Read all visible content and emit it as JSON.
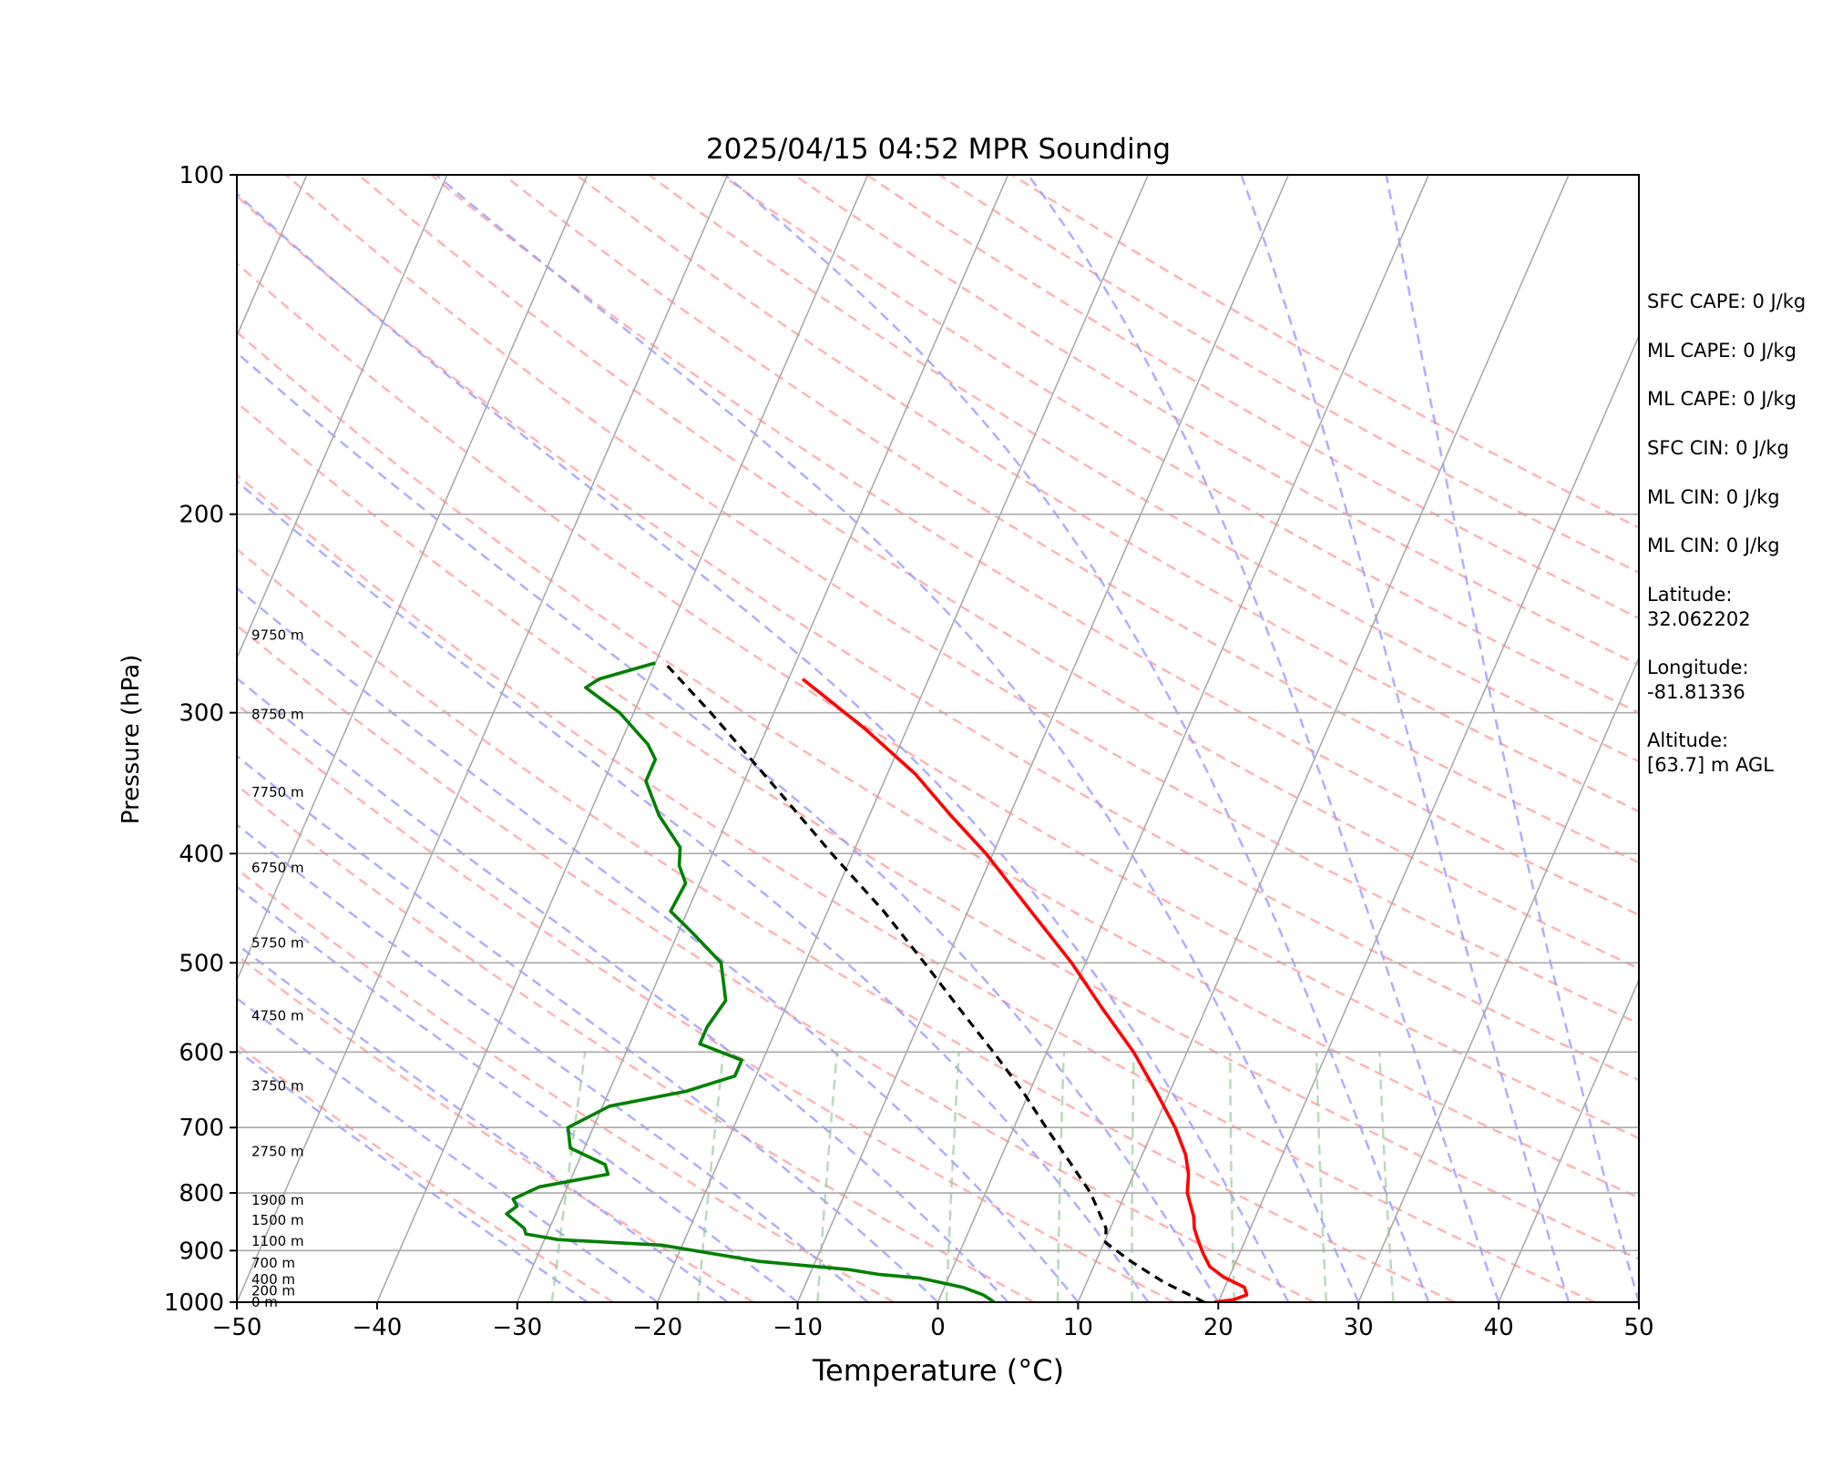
{
  "chart_data": {
    "type": "line",
    "title": "2025/04/15 04:52 MPR Sounding",
    "xlabel": "Temperature (°C)",
    "ylabel": "Pressure (hPa)",
    "xlim": [
      -50,
      50
    ],
    "ylim": [
      1000,
      100
    ],
    "y_scale": "log",
    "x_ticks": [
      -50,
      -40,
      -30,
      -20,
      -10,
      0,
      10,
      20,
      30,
      40,
      50
    ],
    "x_tick_labels": [
      "−50",
      "−40",
      "−30",
      "−20",
      "−10",
      "0",
      "10",
      "20",
      "30",
      "40",
      "50"
    ],
    "y_ticks": [
      1000,
      900,
      800,
      700,
      600,
      500,
      400,
      300,
      200,
      100
    ],
    "y_tick_labels": [
      "1000",
      "900",
      "800",
      "700",
      "600",
      "500",
      "400",
      "300",
      "200",
      "100"
    ],
    "skew": "skew-T log-P",
    "grid": true,
    "height_labels": [
      {
        "p": 1000,
        "text": "0 m"
      },
      {
        "p": 977,
        "text": "200 m"
      },
      {
        "p": 955,
        "text": "400 m"
      },
      {
        "p": 923,
        "text": "700 m"
      },
      {
        "p": 883,
        "text": "1100 m"
      },
      {
        "p": 846,
        "text": "1500 m"
      },
      {
        "p": 812,
        "text": "1900 m"
      },
      {
        "p": 735,
        "text": "2750 m"
      },
      {
        "p": 643,
        "text": "3750 m"
      },
      {
        "p": 557,
        "text": "4750 m"
      },
      {
        "p": 480,
        "text": "5750 m"
      },
      {
        "p": 412,
        "text": "6750 m"
      },
      {
        "p": 353,
        "text": "7750 m"
      },
      {
        "p": 301,
        "text": "8750 m"
      },
      {
        "p": 256,
        "text": "9750 m"
      }
    ],
    "series": [
      {
        "key": "temperature",
        "color": "#ff0000",
        "points": [
          [
            1000,
            19.7
          ],
          [
            995,
            21.0
          ],
          [
            985,
            21.8
          ],
          [
            970,
            21.4
          ],
          [
            950,
            19.6
          ],
          [
            930,
            18.3
          ],
          [
            905,
            17.4
          ],
          [
            880,
            16.6
          ],
          [
            860,
            16.0
          ],
          [
            840,
            15.6
          ],
          [
            800,
            14.4
          ],
          [
            770,
            13.9
          ],
          [
            740,
            13.1
          ],
          [
            700,
            11.5
          ],
          [
            650,
            9.0
          ],
          [
            600,
            6.2
          ],
          [
            550,
            2.7
          ],
          [
            500,
            -1.0
          ],
          [
            450,
            -5.5
          ],
          [
            400,
            -10.5
          ],
          [
            370,
            -14.2
          ],
          [
            340,
            -18.0
          ],
          [
            310,
            -23.0
          ],
          [
            280,
            -29.0
          ]
        ]
      },
      {
        "key": "dewpoint",
        "color": "#008000",
        "points": [
          [
            1000,
            4.0
          ],
          [
            995,
            3.7
          ],
          [
            985,
            3.0
          ],
          [
            970,
            1.3
          ],
          [
            960,
            -0.5
          ],
          [
            952,
            -2.0
          ],
          [
            945,
            -5.0
          ],
          [
            935,
            -7.5
          ],
          [
            920,
            -14.0
          ],
          [
            890,
            -21.5
          ],
          [
            880,
            -29.0
          ],
          [
            870,
            -31.5
          ],
          [
            860,
            -31.8
          ],
          [
            835,
            -33.5
          ],
          [
            822,
            -33.0
          ],
          [
            810,
            -33.5
          ],
          [
            790,
            -32.0
          ],
          [
            770,
            -27.5
          ],
          [
            755,
            -28.0
          ],
          [
            730,
            -31.0
          ],
          [
            700,
            -31.8
          ],
          [
            670,
            -29.5
          ],
          [
            650,
            -24.5
          ],
          [
            630,
            -21.5
          ],
          [
            610,
            -21.5
          ],
          [
            590,
            -25.0
          ],
          [
            570,
            -25.0
          ],
          [
            540,
            -24.5
          ],
          [
            500,
            -26.0
          ],
          [
            470,
            -29.0
          ],
          [
            450,
            -31.2
          ],
          [
            425,
            -31.0
          ],
          [
            410,
            -32.0
          ],
          [
            395,
            -32.5
          ],
          [
            370,
            -35.0
          ],
          [
            345,
            -37.0
          ],
          [
            330,
            -37.0
          ],
          [
            320,
            -38.0
          ],
          [
            300,
            -41.0
          ],
          [
            285,
            -44.2
          ],
          [
            280,
            -43.5
          ],
          [
            271,
            -40.0
          ]
        ]
      },
      {
        "key": "parcel",
        "color": "#000000",
        "style": "dashed",
        "points": [
          [
            1000,
            19.0
          ],
          [
            960,
            15.5
          ],
          [
            920,
            12.5
          ],
          [
            885,
            10.1
          ],
          [
            860,
            9.7
          ],
          [
            800,
            7.5
          ],
          [
            750,
            5.0
          ],
          [
            700,
            2.3
          ],
          [
            650,
            -0.5
          ],
          [
            600,
            -3.8
          ],
          [
            550,
            -7.5
          ],
          [
            500,
            -11.5
          ],
          [
            450,
            -16.0
          ],
          [
            400,
            -21.5
          ],
          [
            350,
            -27.5
          ],
          [
            300,
            -34.5
          ],
          [
            270,
            -39.5
          ]
        ]
      }
    ],
    "background_lines": {
      "isotherm_color": "#aaaaaa",
      "dry_adiabat_color": "#ff9a9a",
      "moist_adiabat_color": "#9a9aff",
      "mixing_ratio_color": "#90c890"
    }
  },
  "annotations": [
    "SFC CAPE: 0 J/kg",
    "ML CAPE: 0 J/kg",
    "ML CAPE: 0 J/kg",
    "SFC CIN: 0 J/kg",
    "ML CIN: 0 J/kg",
    "ML CIN: 0 J/kg",
    "Latitude:\n32.062202",
    "Longitude:\n-81.81336",
    "Altitude:\n[63.7] m AGL"
  ]
}
